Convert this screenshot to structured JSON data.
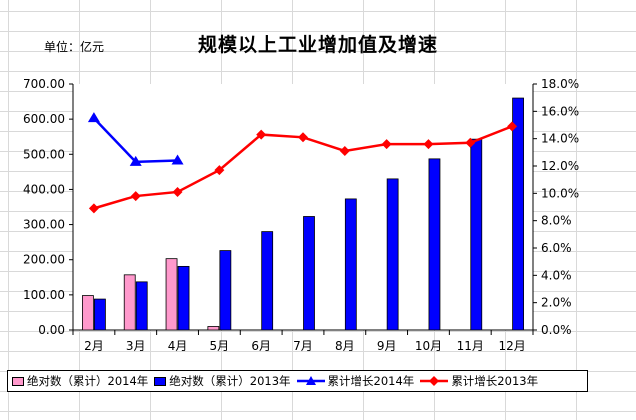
{
  "chart_data": {
    "type": "bar+line",
    "title": "规模以上工业增加值及增速",
    "unit_label": "单位：亿元",
    "categories": [
      "2月",
      "3月",
      "4月",
      "5月",
      "6月",
      "7月",
      "8月",
      "9月",
      "10月",
      "11月",
      "12月"
    ],
    "left_axis": {
      "min": 0,
      "max": 700,
      "step": 100,
      "ticks": [
        "0.00",
        "100.00",
        "200.00",
        "300.00",
        "400.00",
        "500.00",
        "600.00",
        "700.00"
      ]
    },
    "right_axis": {
      "min": 0,
      "max": 18,
      "step": 2,
      "ticks": [
        "0.0%",
        "2.0%",
        "4.0%",
        "6.0%",
        "8.0%",
        "10.0%",
        "12.0%",
        "14.0%",
        "16.0%",
        "18.0%"
      ]
    },
    "series": [
      {
        "name": "绝对数（累计）2014年",
        "kind": "bar",
        "axis": "left",
        "color": "#ff99cc",
        "values": [
          98,
          157,
          203,
          10,
          null,
          null,
          null,
          null,
          null,
          null,
          null
        ]
      },
      {
        "name": "绝对数（累计）2013年",
        "kind": "bar",
        "axis": "left",
        "color": "#0000ff",
        "values": [
          88,
          137,
          181,
          226,
          280,
          323,
          373,
          430,
          487,
          543,
          660
        ]
      },
      {
        "name": "累计增长2014年",
        "kind": "line",
        "axis": "right",
        "color": "#0000ff",
        "marker": "triangle",
        "values": [
          15.5,
          12.3,
          12.4,
          null,
          null,
          null,
          null,
          null,
          null,
          null,
          null
        ]
      },
      {
        "name": "累计增长2013年",
        "kind": "line",
        "axis": "right",
        "color": "#ff0000",
        "marker": "diamond",
        "values": [
          8.9,
          9.8,
          10.1,
          11.7,
          14.3,
          14.1,
          13.1,
          13.6,
          13.6,
          13.7,
          14.9
        ]
      }
    ],
    "grid": false,
    "legend_position": "bottom"
  }
}
